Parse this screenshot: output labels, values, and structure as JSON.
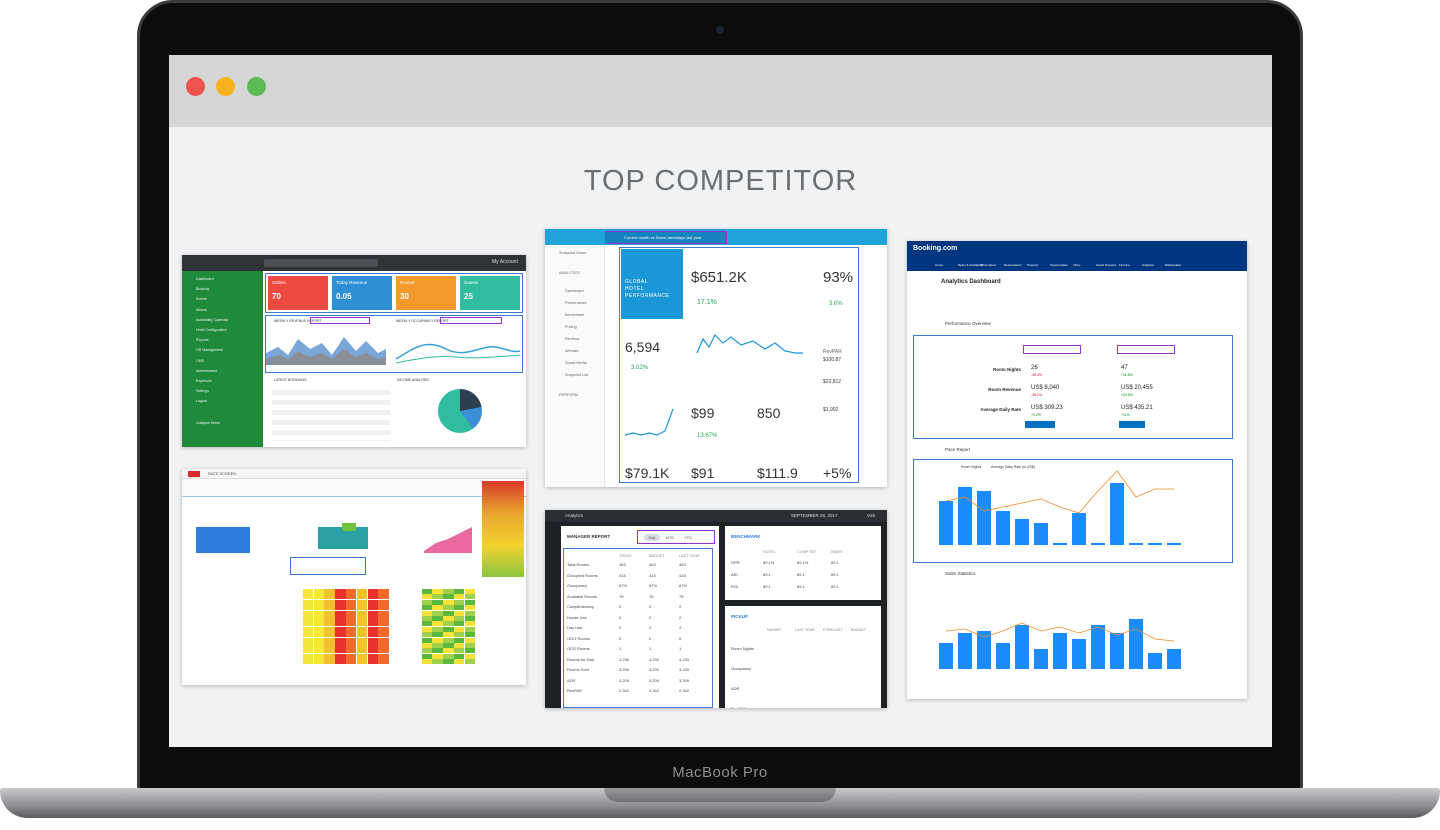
{
  "window": {
    "title": "TOP COMPETITOR",
    "device_label": "MacBook Pro"
  },
  "colors": {
    "close": "#f0524f",
    "minimize": "#f6b31d",
    "zoom": "#5cbb55",
    "accent_blue": "#1a8cff",
    "highlight_purple": "#9b2fd0"
  },
  "screenshots": {
    "dashboard": {
      "sidebar": [
        "Dashboard",
        "Booking",
        "Events",
        "Menus",
        "Availability Calendar",
        "Hotel Configuration",
        "Reports",
        "HR Management",
        "CMS",
        "Administrator",
        "Expenses",
        "Settings",
        "Logout",
        "Collapse Menu"
      ],
      "account": "My Account",
      "tiles": [
        {
          "label": "Orders",
          "value": "70",
          "color": "#ef4a41"
        },
        {
          "label": "Today Revenue",
          "value": "0.05",
          "color": "#2e8fd6"
        },
        {
          "label": "Rooms",
          "value": "30",
          "color": "#f39a2c"
        },
        {
          "label": "Guests",
          "value": "25",
          "color": "#2fbd9e"
        }
      ],
      "weekly_revenue": "WEEKLY REVENUE REPORT",
      "weekly_occupancy": "WEEKLY OCCUPANCY REPORT",
      "latest_bookings": "LATEST BOOKINGS",
      "income_analysis": "INCOME ANALYSIS"
    },
    "analytics": {
      "top_filter": "Current month vs Same weekdays last year",
      "sidebar": [
        "Snapshot Demo",
        "ANALYTICS",
        "Dashboard",
        "Performance",
        "Benchmark",
        "Pricing",
        "Reviews",
        "Website",
        "Social Media",
        "Snapshot Lab",
        "PERFORM"
      ],
      "hero": "GLOBAL HOTEL PERFORMANCE",
      "revenue": "$651.2K",
      "revenue_change": "17.1%",
      "occupancy": "93%",
      "occupancy_change": "3.0%",
      "room_nights": "6,594",
      "room_nights_change": "3.02%",
      "adr": "$99",
      "adr_change": "13.67%",
      "value_850": "850",
      "revpar_label": "RevPAR",
      "revpar": "$100.87",
      "value_23812": "$23,812",
      "value_1902": "$1,902",
      "profit": "$79.1K",
      "revpar2": "$91",
      "trevpar": "$111.9",
      "pickup": "+5%"
    },
    "booking": {
      "brand": "Booking.com",
      "nav": [
        "Home",
        "Rates & Availability",
        "Promotions",
        "Reservations",
        "Property",
        "Opportunities",
        "Inbox",
        "Guest Reviews",
        "Finance",
        "Analytics",
        "Marketplace"
      ],
      "title": "Analytics Dashboard",
      "section": "Performance Overview",
      "rows": [
        {
          "label": "Room Nights",
          "a": "26",
          "a_change": "-38.4%",
          "b": "47",
          "b_change": "+11.8%"
        },
        {
          "label": "Room Revenue",
          "a": "US$ 8,040",
          "a_change": "-38.2%",
          "b": "US$ 20,455",
          "b_change": "+24.5%"
        },
        {
          "label": "Average Daily Rate",
          "a": "US$ 309.23",
          "a_change": "+0.2%",
          "b": "US$ 435.21",
          "b_change": "+11%"
        }
      ],
      "pace_title": "Pace Report",
      "sales_title": "Sales Statistics",
      "legend_a": "Room Nights",
      "legend_b": "Average Daily Rate (in US$)"
    },
    "rate_grid": {
      "title": "RATE SCREEN"
    },
    "manager": {
      "app": "Analytics",
      "date": "SEPTEMBER 26, 2017",
      "user": "Vick",
      "report_title": "MANAGER REPORT",
      "tabs": [
        "Day",
        "MTD",
        "YTD"
      ],
      "columns": [
        "TODAY",
        "BUDGET",
        "LAST YEAR"
      ],
      "rows": [
        {
          "label": "Total Rooms",
          "v": [
            "463",
            "463",
            "463"
          ]
        },
        {
          "label": "Occupied Rooms",
          "v": [
            "415",
            "415",
            "415"
          ]
        },
        {
          "label": "Occupancy",
          "v": [
            "87%",
            "87%",
            "87%"
          ]
        },
        {
          "label": "Available Rooms",
          "v": [
            "78",
            "78",
            "78"
          ]
        },
        {
          "label": "Complimentary",
          "v": [
            "2",
            "2",
            "2"
          ]
        },
        {
          "label": "House Use",
          "v": [
            "2",
            "2",
            "2"
          ]
        },
        {
          "label": "Day Use",
          "v": [
            "2",
            "2",
            "2"
          ]
        },
        {
          "label": "OOO Rooms",
          "v": [
            "0",
            "0",
            "0"
          ]
        },
        {
          "label": "OOS Rooms",
          "v": [
            "1",
            "1",
            "1"
          ]
        },
        {
          "label": "Rooms for Sale",
          "v": [
            "4,230",
            "4,230",
            "4,230"
          ]
        },
        {
          "label": "Rooms Sold",
          "v": [
            "3,230",
            "3,230",
            "3,230"
          ]
        },
        {
          "label": "ADR",
          "v": [
            "3,209",
            "3,209",
            "3,209"
          ]
        },
        {
          "label": "RevPAR",
          "v": [
            "2,342",
            "2,342",
            "2,342"
          ]
        }
      ],
      "benchmark_title": "BENCHMARK",
      "benchmark_columns": [
        "HOTEL",
        "COMP SET",
        "INDEX"
      ],
      "benchmark_rows": [
        {
          "label": "OPR",
          "v": [
            "89.1%",
            "89.1%",
            "89.1"
          ]
        },
        {
          "label": "ARI",
          "v": [
            "89.1",
            "89.1",
            "89.1"
          ]
        },
        {
          "label": "RGI",
          "v": [
            "89.1",
            "89.1",
            "89.1"
          ]
        }
      ],
      "pickup_title": "PICKUP",
      "pickup_columns": [
        "MARKET",
        "LAST YEAR",
        "FORECAST",
        "BUDGET"
      ],
      "pickup_rows": [
        "Room Nights",
        "Occupancy",
        "ADR",
        "RevPAR"
      ]
    }
  }
}
